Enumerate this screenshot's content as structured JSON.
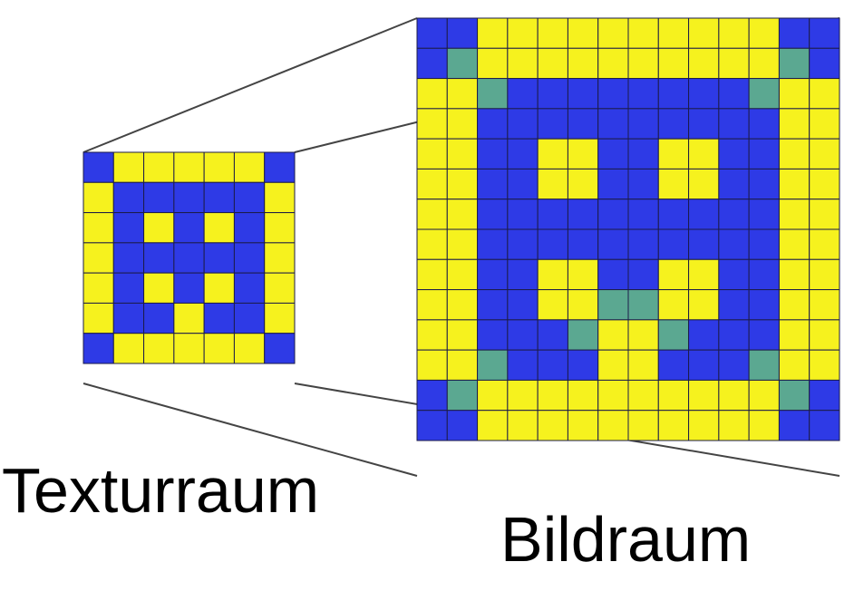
{
  "labels": {
    "texture_space": "Texturraum",
    "image_space": "Bildraum"
  },
  "colors": {
    "blue": "#2e3ae6",
    "yellow": "#f6f21e",
    "green": "#5ba891",
    "grid_line": "#1c1c4a",
    "connector": "#444444"
  },
  "texture_grid": [
    "BYYYYYB",
    "YBBBBBY",
    "YBYBYBY",
    "YBBBBBY",
    "YBYBYBY",
    "YBBYBBY",
    "BYYYYYB"
  ],
  "image_grid": [
    "BBYYYYYYYYYYBB",
    "BGYYYYYYYYYYGB",
    "YYGBBBBBBBBGYY",
    "YYBBBBBBBBBBYY",
    "YYBBYYBBYYBBYY",
    "YYBBYYBBYYBBYY",
    "YYBBBBBBBBBBYY",
    "YYBBBBBBBBBBYY",
    "YYBBYYBBYYBBYY",
    "YYBBYYGGYYBBYY",
    "YYBBBGYYGBBBYY",
    "YYGBBBYYBBBGYY",
    "BGYYYYYYYYYYGB",
    "BBYYYYYYYYYYBB"
  ]
}
